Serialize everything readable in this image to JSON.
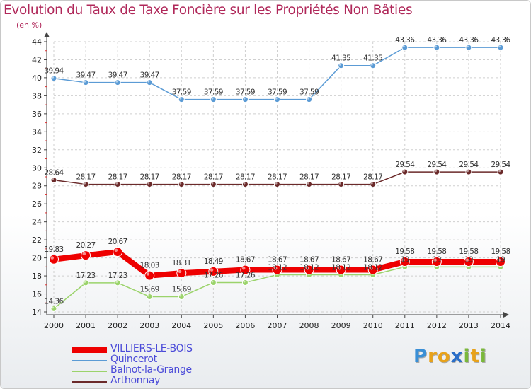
{
  "chart_data": {
    "type": "line",
    "title": "Evolution du Taux de Taxe Foncière sur les Propriétés Non Bâties",
    "ylabel": "(en %)",
    "xlabel": "",
    "x": [
      "2000",
      "2001",
      "2002",
      "2003",
      "2004",
      "2005",
      "2006",
      "2007",
      "2008",
      "2009",
      "2010",
      "2011",
      "2012",
      "2013",
      "2014"
    ],
    "ylim": [
      14,
      44
    ],
    "yticks": [
      14,
      16,
      18,
      20,
      22,
      24,
      26,
      28,
      30,
      32,
      34,
      36,
      38,
      40,
      42,
      44
    ],
    "grid": true,
    "legend_position": "bottom-left",
    "series": [
      {
        "name": "Quincerot",
        "color": "#5b9bd5",
        "values": [
          39.94,
          39.47,
          39.47,
          39.47,
          37.59,
          37.59,
          37.59,
          37.59,
          37.59,
          41.35,
          41.35,
          43.36,
          43.36,
          43.36,
          43.36
        ],
        "labels": [
          "39.94",
          "39.47",
          "39.47",
          "39.47",
          "37.59",
          "37.59",
          "37.59",
          "37.59",
          "37.59",
          "41.35",
          "41.35",
          "43.36",
          "43.36",
          "43.36",
          "43.36"
        ]
      },
      {
        "name": "Arthonnay",
        "color": "#6b2a2a",
        "values": [
          28.64,
          28.17,
          28.17,
          28.17,
          28.17,
          28.17,
          28.17,
          28.17,
          28.17,
          28.17,
          28.17,
          29.54,
          29.54,
          29.54,
          29.54
        ],
        "labels": [
          "28.64",
          "28.17",
          "28.17",
          "28.17",
          "28.17",
          "28.17",
          "28.17",
          "28.17",
          "28.17",
          "28.17",
          "28.17",
          "29.54",
          "29.54",
          "29.54",
          "29.54"
        ]
      },
      {
        "name": "Balnot-la-Grange",
        "color": "#9bd36b",
        "values": [
          14.36,
          17.23,
          17.23,
          15.69,
          15.69,
          17.26,
          17.26,
          18.12,
          18.12,
          18.12,
          18.12,
          19,
          19,
          19,
          19
        ],
        "labels": [
          "14.36",
          "17.23",
          "17.23",
          "15.69",
          "15.69",
          "17.26",
          "17.26",
          "18.12",
          "18.12",
          "18.12",
          "18.12",
          "19",
          "19",
          "19",
          "19"
        ]
      },
      {
        "name": "VILLIERS-LE-BOIS",
        "color": "#ee0000",
        "values": [
          19.83,
          20.27,
          20.67,
          18.03,
          18.31,
          18.49,
          18.67,
          18.67,
          18.67,
          18.67,
          18.67,
          19.58,
          19.58,
          19.58,
          19.58
        ],
        "labels": [
          "19.83",
          "20.27",
          "20.67",
          "18.03",
          "18.31",
          "18.49",
          "18.67",
          "18.67",
          "18.67",
          "18.67",
          "18.67",
          "19.58",
          "19.58",
          "19.58",
          "19.58"
        ]
      }
    ],
    "legend_order": [
      "VILLIERS-LE-BOIS",
      "Quincerot",
      "Balnot-la-Grange",
      "Arthonnay"
    ]
  },
  "logo": {
    "letters": [
      "P",
      "r",
      "o",
      "x",
      "i",
      "t",
      "i"
    ],
    "colors": [
      "#3a8fd6",
      "#e8a21a",
      "#e8a21a",
      "#2a6ec8",
      "#7ab83a",
      "#e8a21a",
      "#7ab83a"
    ]
  }
}
